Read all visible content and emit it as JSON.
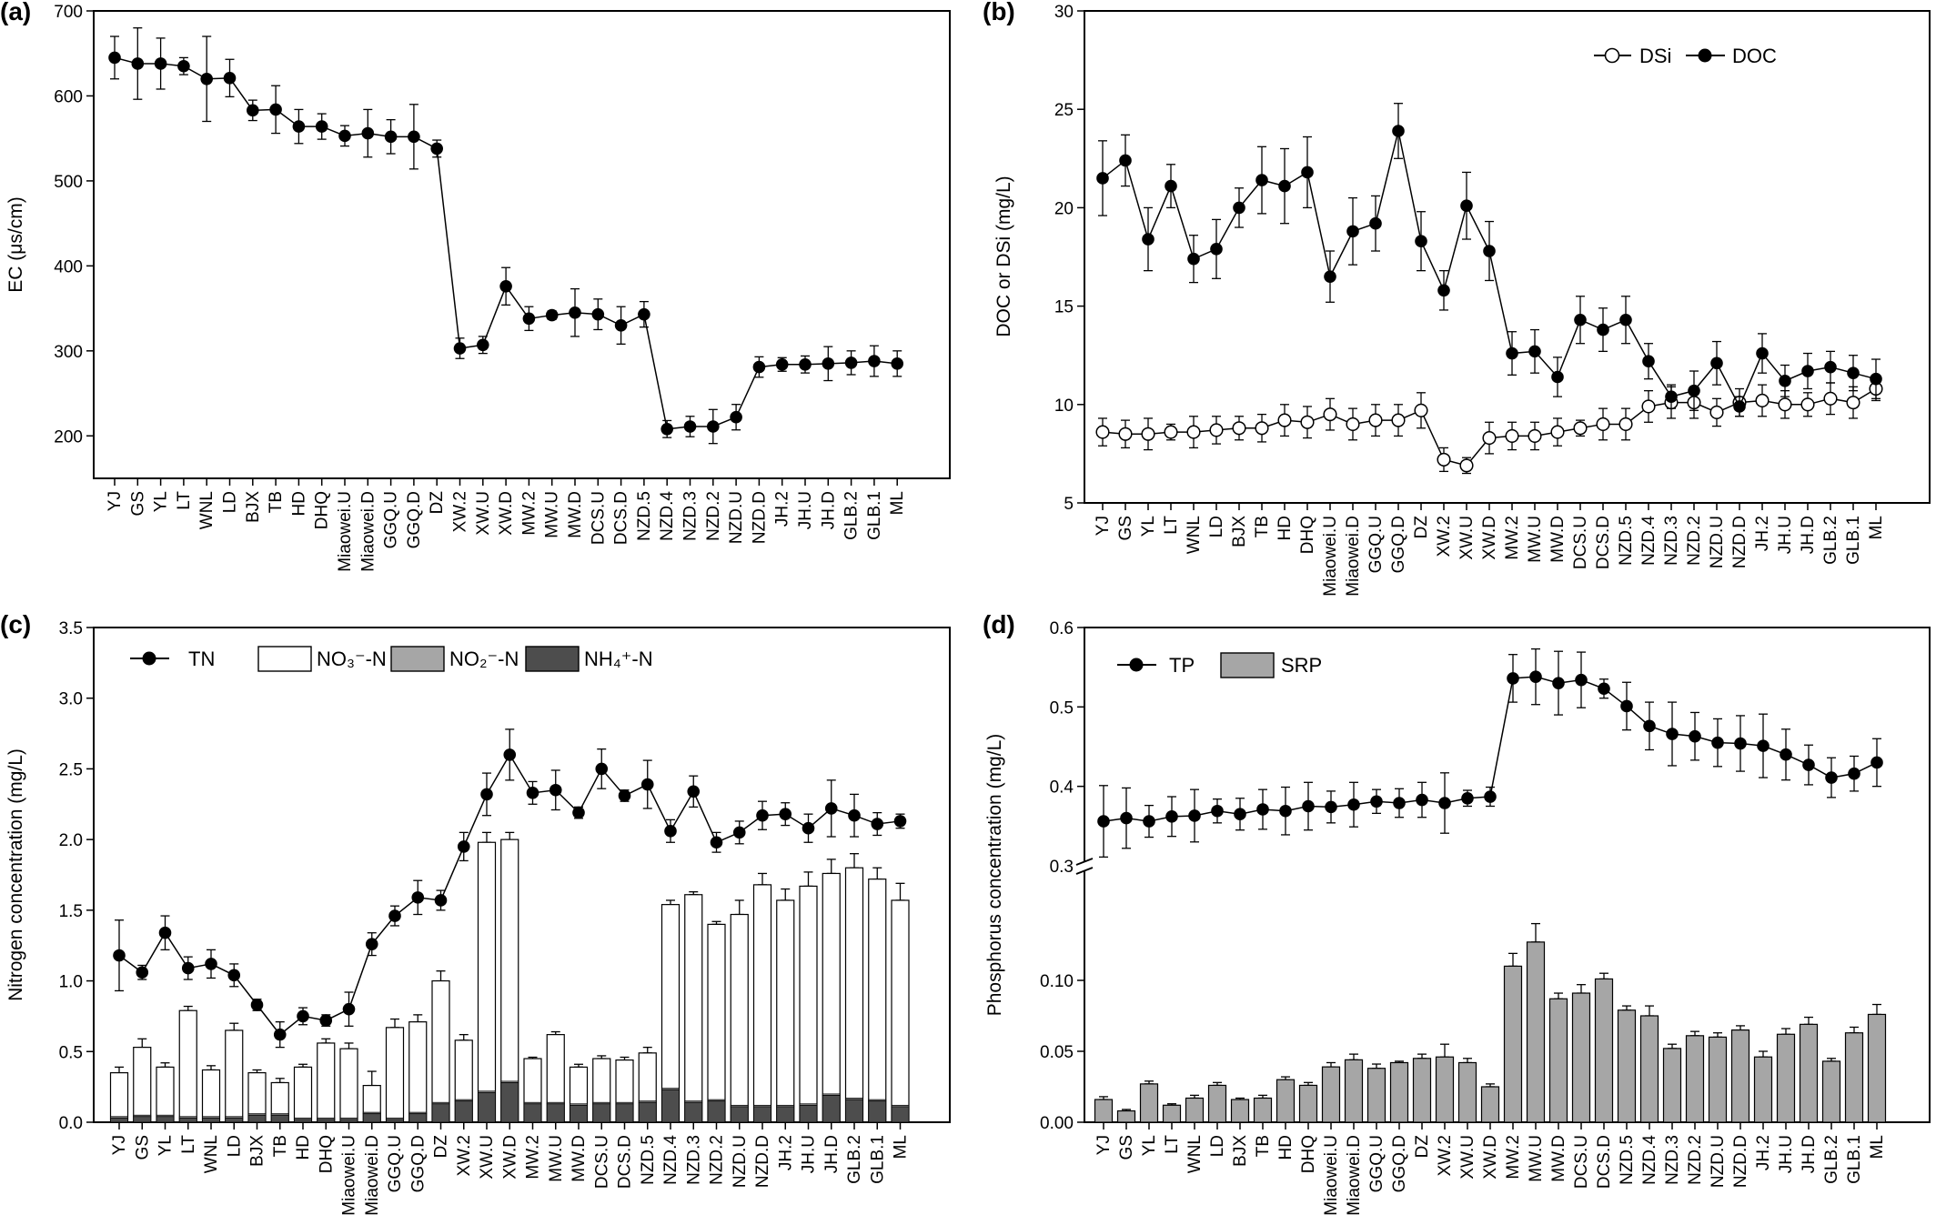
{
  "categories": [
    "YJ",
    "GS",
    "YL",
    "LT",
    "WNL",
    "LD",
    "BJX",
    "TB",
    "HD",
    "DHQ",
    "Miaowei.U",
    "Miaowei.D",
    "GGQ.U",
    "GGQ.D",
    "DZ",
    "XW.2",
    "XW.U",
    "XW.D",
    "MW.2",
    "MW.U",
    "MW.D",
    "DCS.U",
    "DCS.D",
    "NZD.5",
    "NZD.4",
    "NZD.3",
    "NZD.2",
    "NZD.U",
    "NZD.D",
    "JH.2",
    "JH.U",
    "JH.D",
    "GLB.2",
    "GLB.1",
    "ML"
  ],
  "chart_data": [
    {
      "id": "a",
      "panel_label": "(a)",
      "type": "line",
      "xlabel": "",
      "ylabel": "EC (μs/cm)",
      "ylim": [
        150,
        700
      ],
      "yticks": [
        "200",
        "300",
        "400",
        "500",
        "600",
        "700"
      ],
      "series": [
        {
          "name": "",
          "values": [
            645,
            638,
            638,
            635,
            620,
            621,
            583,
            584,
            564,
            564,
            553,
            556,
            552,
            552,
            538,
            303,
            307,
            376,
            338,
            342,
            345,
            343,
            330,
            343,
            208,
            211,
            211,
            222,
            281,
            284,
            284,
            285,
            286,
            288,
            285
          ],
          "errors": [
            25,
            42,
            30,
            10,
            50,
            22,
            12,
            28,
            20,
            15,
            12,
            28,
            20,
            38,
            10,
            12,
            10,
            22,
            14,
            5,
            28,
            18,
            22,
            15,
            10,
            12,
            20,
            15,
            12,
            8,
            10,
            20,
            14,
            18,
            15
          ]
        }
      ]
    },
    {
      "id": "b",
      "panel_label": "(b)",
      "type": "line",
      "xlabel": "",
      "ylabel": "DOC or DSi (mg/L)",
      "ylim": [
        5,
        30
      ],
      "yticks": [
        "5",
        "10",
        "15",
        "20",
        "25",
        "30"
      ],
      "legend_position": "top-right",
      "series": [
        {
          "name": "DSi",
          "marker": "open",
          "values": [
            8.6,
            8.5,
            8.5,
            8.6,
            8.6,
            8.7,
            8.8,
            8.8,
            9.2,
            9.1,
            9.5,
            9.0,
            9.2,
            9.2,
            9.7,
            7.2,
            6.9,
            8.3,
            8.4,
            8.4,
            8.6,
            8.8,
            9.0,
            9.0,
            9.9,
            10.1,
            10.1,
            9.6,
            10.1,
            10.2,
            10.0,
            10.0,
            10.3,
            10.1,
            10.8
          ],
          "errors": [
            0.7,
            0.7,
            0.8,
            0.4,
            0.8,
            0.7,
            0.6,
            0.7,
            0.8,
            0.8,
            0.8,
            0.8,
            0.8,
            0.8,
            0.9,
            0.6,
            0.4,
            0.8,
            0.7,
            0.7,
            0.7,
            0.4,
            0.8,
            0.8,
            0.8,
            0.8,
            0.8,
            0.7,
            0.7,
            0.8,
            0.7,
            0.6,
            0.8,
            0.8,
            0.6
          ]
        },
        {
          "name": "DOC",
          "marker": "filled",
          "values": [
            21.5,
            22.4,
            18.4,
            21.1,
            17.4,
            17.9,
            20.0,
            21.4,
            21.1,
            21.8,
            16.5,
            18.8,
            19.2,
            23.9,
            18.3,
            15.8,
            20.1,
            17.8,
            12.6,
            12.7,
            11.4,
            14.3,
            13.8,
            14.3,
            12.2,
            10.4,
            10.7,
            12.1,
            9.9,
            12.6,
            11.2,
            11.7,
            11.9,
            11.6,
            11.3
          ],
          "errors": [
            1.9,
            1.3,
            1.6,
            1.1,
            1.2,
            1.5,
            1.0,
            1.7,
            1.9,
            1.8,
            1.3,
            1.7,
            1.4,
            1.4,
            1.5,
            1.0,
            1.7,
            1.5,
            1.1,
            1.1,
            1.0,
            1.2,
            1.1,
            1.2,
            0.9,
            0.6,
            1.0,
            1.1,
            0.5,
            1.0,
            0.8,
            0.9,
            0.8,
            0.9,
            1.0
          ]
        }
      ]
    },
    {
      "id": "c",
      "panel_label": "(c)",
      "type": "bar",
      "xlabel": "",
      "ylabel": "Nitrogen concentration (mg/L)",
      "ylim": [
        0,
        3.5
      ],
      "yticks": [
        "0.0",
        "0.5",
        "1.0",
        "1.5",
        "2.0",
        "2.5",
        "3.0",
        "3.5"
      ],
      "legend_position": "top",
      "legend": {
        "tn": "TN",
        "no3": "NO₃⁻-N",
        "no2": "NO₂⁻-N",
        "nh4": "NH₄⁺-N"
      },
      "series": [
        {
          "name": "TN",
          "kind": "line",
          "values": [
            1.18,
            1.06,
            1.34,
            1.09,
            1.12,
            1.04,
            0.83,
            0.62,
            0.75,
            0.72,
            0.8,
            1.26,
            1.46,
            1.59,
            1.57,
            1.95,
            2.32,
            2.6,
            2.33,
            2.35,
            2.19,
            2.5,
            2.31,
            2.39,
            2.06,
            2.34,
            1.98,
            2.05,
            2.17,
            2.18,
            2.08,
            2.22,
            2.17,
            2.11,
            2.13
          ],
          "errors": [
            0.25,
            0.05,
            0.12,
            0.08,
            0.1,
            0.08,
            0.04,
            0.09,
            0.06,
            0.04,
            0.12,
            0.08,
            0.07,
            0.12,
            0.07,
            0.1,
            0.15,
            0.18,
            0.08,
            0.14,
            0.04,
            0.14,
            0.04,
            0.17,
            0.08,
            0.11,
            0.07,
            0.08,
            0.1,
            0.08,
            0.1,
            0.2,
            0.15,
            0.08,
            0.05
          ]
        },
        {
          "name": "NO₃⁻-N total bar",
          "kind": "bar",
          "values": [
            0.35,
            0.53,
            0.39,
            0.79,
            0.37,
            0.65,
            0.35,
            0.28,
            0.39,
            0.56,
            0.52,
            0.26,
            0.67,
            0.71,
            1.0,
            0.58,
            1.98,
            2.0,
            0.45,
            0.62,
            0.39,
            0.45,
            0.44,
            0.49,
            1.54,
            1.61,
            1.4,
            1.47,
            1.68,
            1.57,
            1.67,
            1.76,
            1.8,
            1.72,
            1.57
          ],
          "errors": [
            0.04,
            0.06,
            0.03,
            0.03,
            0.03,
            0.05,
            0.02,
            0.03,
            0.02,
            0.03,
            0.04,
            0.1,
            0.06,
            0.05,
            0.07,
            0.04,
            0.07,
            0.05,
            0.01,
            0.02,
            0.02,
            0.02,
            0.02,
            0.04,
            0.03,
            0.02,
            0.02,
            0.1,
            0.08,
            0.08,
            0.1,
            0.1,
            0.1,
            0.08,
            0.12
          ]
        },
        {
          "name": "NO₂⁻-N",
          "kind": "bar",
          "values": [
            0.01,
            0.01,
            0.01,
            0.01,
            0.01,
            0.01,
            0.01,
            0.01,
            0.01,
            0.01,
            0.01,
            0.01,
            0.01,
            0.01,
            0.01,
            0.01,
            0.01,
            0.01,
            0.01,
            0.01,
            0.01,
            0.01,
            0.01,
            0.01,
            0.01,
            0.01,
            0.01,
            0.01,
            0.01,
            0.01,
            0.01,
            0.01,
            0.01,
            0.01,
            0.01
          ]
        },
        {
          "name": "NH₄⁺-N",
          "kind": "bar",
          "values": [
            0.03,
            0.04,
            0.04,
            0.03,
            0.03,
            0.03,
            0.05,
            0.05,
            0.02,
            0.02,
            0.02,
            0.06,
            0.02,
            0.06,
            0.13,
            0.15,
            0.21,
            0.28,
            0.13,
            0.13,
            0.12,
            0.13,
            0.13,
            0.14,
            0.23,
            0.14,
            0.15,
            0.11,
            0.11,
            0.11,
            0.12,
            0.19,
            0.16,
            0.15,
            0.11
          ]
        }
      ]
    },
    {
      "id": "d",
      "panel_label": "(d)",
      "type": "bar",
      "xlabel": "",
      "ylabel": "Phosphorus concentration (mg/L)",
      "axis_break": true,
      "ylim_lower": [
        0,
        0.15
      ],
      "yticks_lower": [
        "0.00",
        "0.05",
        "0.10"
      ],
      "ylim_upper": [
        0.3,
        0.6
      ],
      "yticks_upper": [
        "0.3",
        "0.4",
        "0.5",
        "0.6"
      ],
      "legend_position": "top-left",
      "legend": {
        "tp": "TP",
        "srp": "SRP"
      },
      "series": [
        {
          "name": "TP",
          "kind": "line",
          "values": [
            0.356,
            0.36,
            0.356,
            0.362,
            0.363,
            0.369,
            0.365,
            0.371,
            0.369,
            0.375,
            0.374,
            0.377,
            0.381,
            0.379,
            0.383,
            0.379,
            0.385,
            0.387,
            0.536,
            0.538,
            0.53,
            0.534,
            0.523,
            0.501,
            0.476,
            0.466,
            0.463,
            0.455,
            0.454,
            0.451,
            0.44,
            0.427,
            0.411,
            0.416,
            0.43
          ],
          "errors": [
            0.045,
            0.038,
            0.02,
            0.025,
            0.033,
            0.015,
            0.02,
            0.025,
            0.03,
            0.03,
            0.02,
            0.028,
            0.015,
            0.018,
            0.022,
            0.038,
            0.01,
            0.012,
            0.03,
            0.035,
            0.04,
            0.035,
            0.012,
            0.03,
            0.03,
            0.04,
            0.03,
            0.03,
            0.035,
            0.04,
            0.032,
            0.025,
            0.025,
            0.022,
            0.03
          ]
        },
        {
          "name": "SRP",
          "kind": "bar",
          "values": [
            0.016,
            0.008,
            0.027,
            0.012,
            0.017,
            0.026,
            0.016,
            0.017,
            0.03,
            0.026,
            0.039,
            0.044,
            0.038,
            0.042,
            0.045,
            0.046,
            0.042,
            0.025,
            0.11,
            0.127,
            0.087,
            0.091,
            0.101,
            0.079,
            0.075,
            0.052,
            0.061,
            0.06,
            0.065,
            0.046,
            0.062,
            0.069,
            0.043,
            0.063,
            0.076
          ],
          "errors": [
            0.002,
            0.001,
            0.002,
            0.001,
            0.002,
            0.002,
            0.001,
            0.002,
            0.002,
            0.002,
            0.003,
            0.004,
            0.003,
            0.001,
            0.003,
            0.009,
            0.003,
            0.002,
            0.009,
            0.013,
            0.004,
            0.006,
            0.004,
            0.003,
            0.007,
            0.003,
            0.003,
            0.003,
            0.003,
            0.004,
            0.004,
            0.005,
            0.002,
            0.004,
            0.007
          ]
        }
      ]
    }
  ]
}
